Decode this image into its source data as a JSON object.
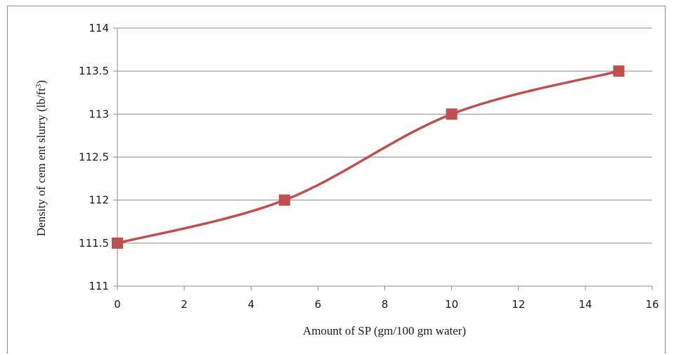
{
  "chart_data": {
    "type": "line",
    "title": "",
    "xlabel": "Amount of SP (gm/100 gm water)",
    "ylabel_main": "Density of cem ent slurry  (lb/ft",
    "ylabel_sup": "3",
    "ylabel_close": ")",
    "xlim": [
      0,
      16
    ],
    "ylim": [
      111,
      114
    ],
    "x_ticks": [
      "0",
      "2",
      "4",
      "6",
      "8",
      "10",
      "12",
      "14",
      "16"
    ],
    "y_ticks": [
      "111",
      "111.5",
      "112",
      "112.5",
      "113",
      "113.5",
      "114"
    ],
    "grid": "horizontal",
    "legend": "none",
    "series": [
      {
        "color": "#c0504d",
        "marker": "square",
        "smooth": true,
        "x": [
          0,
          5,
          10,
          15
        ],
        "y": [
          111.5,
          112,
          113,
          113.5
        ]
      }
    ]
  }
}
